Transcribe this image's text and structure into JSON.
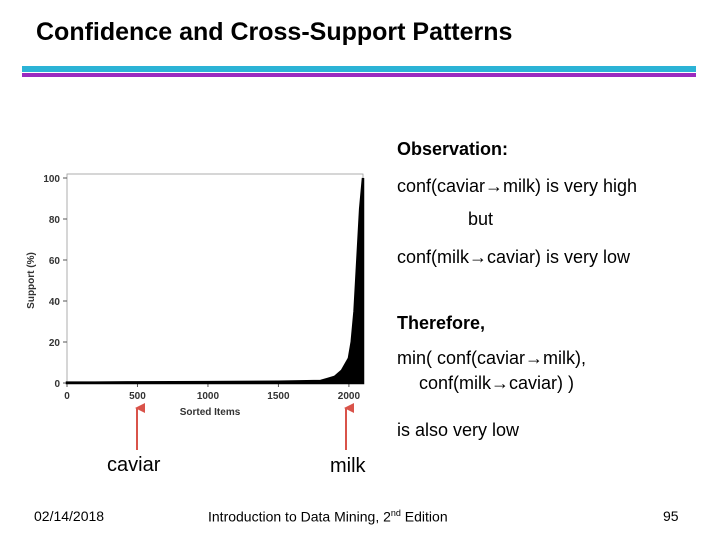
{
  "slide": {
    "title": "Confidence and Cross-Support Patterns",
    "accent_colors": {
      "cyan": "#2bb3d6",
      "purple": "#9a2bbf"
    }
  },
  "observation": {
    "heading": "Observation:",
    "line1": "conf(caviar→milk) is very high",
    "but": "but",
    "line2": "conf(milk→caviar) is very low",
    "therefore": "Therefore,",
    "min_line1": "min( conf(caviar→milk),",
    "min_line2": "conf(milk→caviar) )",
    "conclusion": "is also very low"
  },
  "annotations": {
    "caviar": "caviar",
    "milk": "milk"
  },
  "footer": {
    "date": "02/14/2018",
    "book_prefix": "Introduction to Data Mining, 2",
    "book_sup": "nd",
    "book_suffix": " Edition",
    "page": "95"
  },
  "chart_data": {
    "type": "area",
    "xlabel": "Sorted Items",
    "ylabel": "Support (%)",
    "xlim": [
      0,
      2100
    ],
    "ylim": [
      0,
      100
    ],
    "x_ticks": [
      0,
      500,
      1000,
      1500,
      2000
    ],
    "y_ticks": [
      0,
      20,
      40,
      60,
      80,
      100
    ],
    "grid": false,
    "series": [
      {
        "x": [
          0,
          200,
          500,
          1000,
          1500,
          1800,
          1850,
          1900,
          1950,
          2000,
          2020,
          2040,
          2060,
          2080,
          2100
        ],
        "values": [
          0.2,
          0.2,
          0.3,
          0.4,
          0.6,
          1,
          2,
          3,
          6,
          12,
          20,
          35,
          60,
          85,
          100
        ]
      }
    ],
    "annotations_x": {
      "caviar": 500,
      "milk": 2000
    }
  }
}
